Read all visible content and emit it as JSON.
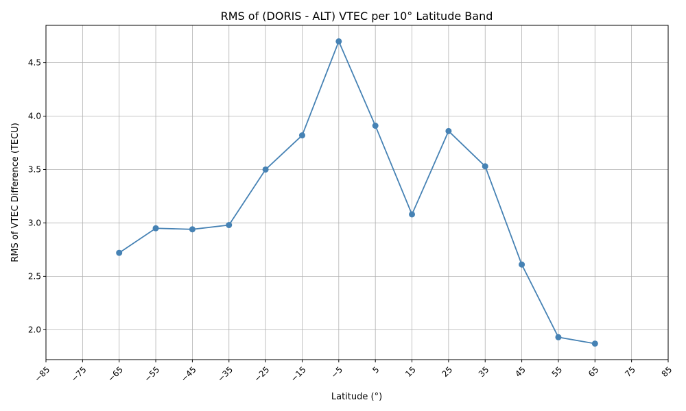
{
  "chart_data": {
    "type": "line",
    "title": "RMS of (DORIS - ALT) VTEC per 10° Latitude Band",
    "xlabel": "Latitude (°)",
    "ylabel": "RMS of VTEC Difference (TECU)",
    "xlim": [
      -85,
      85
    ],
    "ylim": [
      1.72,
      4.85
    ],
    "xticks": [
      -85,
      -75,
      -65,
      -55,
      -45,
      -35,
      -25,
      -15,
      -5,
      5,
      15,
      25,
      35,
      45,
      55,
      65,
      75,
      85
    ],
    "xtick_labels": [
      "−85",
      "−75",
      "−65",
      "−55",
      "−45",
      "−35",
      "−25",
      "−15",
      "−5",
      "5",
      "15",
      "25",
      "35",
      "45",
      "55",
      "65",
      "75",
      "85"
    ],
    "yticks": [
      2.0,
      2.5,
      3.0,
      3.5,
      4.0,
      4.5
    ],
    "ytick_labels": [
      "2.0",
      "2.5",
      "3.0",
      "3.5",
      "4.0",
      "4.5"
    ],
    "grid": true,
    "color": "#4682b4",
    "series": [
      {
        "x": [
          -65,
          -55,
          -45,
          -35,
          -25,
          -15,
          -5,
          5,
          15,
          25,
          35,
          45,
          55,
          65
        ],
        "values": [
          2.72,
          2.95,
          2.94,
          2.98,
          3.5,
          3.82,
          4.7,
          3.91,
          3.08,
          3.86,
          3.53,
          2.61,
          1.93,
          1.87
        ]
      }
    ]
  }
}
